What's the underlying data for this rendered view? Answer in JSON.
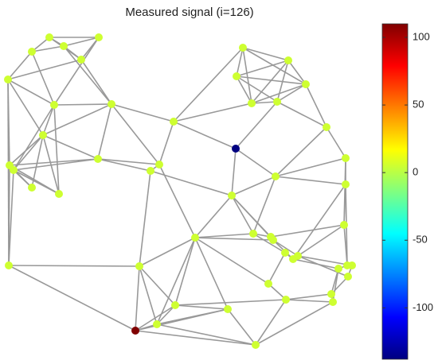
{
  "chart_data": {
    "type": "graph-signal",
    "title": "Measured signal (i=126)",
    "x": [
      62,
      40,
      80,
      124,
      102,
      10,
      68,
      140,
      54,
      12,
      17,
      40,
      74,
      123,
      189,
      200,
      218,
      296,
      305,
      362,
      297,
      384,
      316,
      348,
      410,
      434,
      346,
      434,
      291,
      245,
      318,
      340,
      343,
      432,
      358,
      368,
      374,
      436,
      442,
      425,
      437,
      11,
      175,
      337,
      416,
      418,
      359,
      220,
      286,
      197,
      170,
      321
    ],
    "y": [
      47,
      65,
      58,
      47,
      75,
      100,
      132,
      131,
      170,
      208,
      214,
      236,
      244,
      200,
      215,
      207,
      153,
      187,
      60,
      76,
      96,
      106,
      130,
      128,
      160,
      199,
      222,
      232,
      246,
      299,
      294,
      298,
      302,
      283,
      318,
      326,
      322,
      334,
      334,
      338,
      348,
      334,
      335,
      357,
      370,
      380,
      377,
      384,
      389,
      408,
      416,
      434
    ],
    "values": [
      5,
      5,
      5,
      5,
      5,
      5,
      5,
      5,
      5,
      5,
      5,
      5,
      5,
      5,
      5,
      5,
      5,
      -138,
      5,
      5,
      5,
      5,
      5,
      5,
      5,
      5,
      5,
      5,
      5,
      5,
      5,
      5,
      5,
      5,
      5,
      5,
      5,
      5,
      5,
      5,
      5,
      5,
      5,
      5,
      5,
      5,
      5,
      5,
      5,
      5,
      110,
      5
    ],
    "edges": [
      [
        0,
        1
      ],
      [
        0,
        2
      ],
      [
        0,
        3
      ],
      [
        0,
        4
      ],
      [
        1,
        2
      ],
      [
        1,
        5
      ],
      [
        1,
        6
      ],
      [
        2,
        3
      ],
      [
        2,
        4
      ],
      [
        3,
        4
      ],
      [
        3,
        6
      ],
      [
        2,
        7
      ],
      [
        4,
        7
      ],
      [
        4,
        5
      ],
      [
        5,
        6
      ],
      [
        5,
        8
      ],
      [
        5,
        9
      ],
      [
        6,
        7
      ],
      [
        6,
        8
      ],
      [
        6,
        10
      ],
      [
        6,
        12
      ],
      [
        7,
        8
      ],
      [
        7,
        13
      ],
      [
        7,
        15
      ],
      [
        7,
        16
      ],
      [
        8,
        9
      ],
      [
        8,
        10
      ],
      [
        8,
        11
      ],
      [
        8,
        12
      ],
      [
        8,
        13
      ],
      [
        9,
        10
      ],
      [
        9,
        11
      ],
      [
        9,
        12
      ],
      [
        9,
        13
      ],
      [
        10,
        13
      ],
      [
        10,
        11
      ],
      [
        10,
        12
      ],
      [
        10,
        41
      ],
      [
        9,
        41
      ],
      [
        13,
        14
      ],
      [
        13,
        15
      ],
      [
        14,
        15
      ],
      [
        14,
        42
      ],
      [
        14,
        28
      ],
      [
        15,
        16
      ],
      [
        15,
        29
      ],
      [
        16,
        18
      ],
      [
        16,
        17
      ],
      [
        16,
        22
      ],
      [
        17,
        28
      ],
      [
        17,
        26
      ],
      [
        17,
        23
      ],
      [
        18,
        19
      ],
      [
        18,
        20
      ],
      [
        18,
        21
      ],
      [
        18,
        22
      ],
      [
        19,
        20
      ],
      [
        19,
        21
      ],
      [
        19,
        22
      ],
      [
        19,
        23
      ],
      [
        20,
        21
      ],
      [
        20,
        22
      ],
      [
        20,
        23
      ],
      [
        21,
        22
      ],
      [
        21,
        23
      ],
      [
        21,
        24
      ],
      [
        22,
        23
      ],
      [
        23,
        24
      ],
      [
        24,
        25
      ],
      [
        24,
        26
      ],
      [
        25,
        26
      ],
      [
        25,
        27
      ],
      [
        26,
        28
      ],
      [
        26,
        30
      ],
      [
        26,
        27
      ],
      [
        27,
        33
      ],
      [
        27,
        35
      ],
      [
        28,
        29
      ],
      [
        28,
        30
      ],
      [
        28,
        31
      ],
      [
        28,
        32
      ],
      [
        29,
        30
      ],
      [
        29,
        32
      ],
      [
        29,
        42
      ],
      [
        29,
        43
      ],
      [
        29,
        47
      ],
      [
        29,
        48
      ],
      [
        29,
        49
      ],
      [
        30,
        31
      ],
      [
        30,
        34
      ],
      [
        31,
        32
      ],
      [
        31,
        33
      ],
      [
        32,
        35
      ],
      [
        32,
        36
      ],
      [
        33,
        37
      ],
      [
        33,
        36
      ],
      [
        34,
        35
      ],
      [
        34,
        43
      ],
      [
        35,
        39
      ],
      [
        36,
        38
      ],
      [
        36,
        40
      ],
      [
        37,
        38
      ],
      [
        37,
        39
      ],
      [
        38,
        40
      ],
      [
        39,
        44
      ],
      [
        39,
        45
      ],
      [
        40,
        44
      ],
      [
        44,
        45
      ],
      [
        44,
        46
      ],
      [
        43,
        46
      ],
      [
        45,
        46
      ],
      [
        45,
        51
      ],
      [
        46,
        51
      ],
      [
        46,
        47
      ],
      [
        47,
        48
      ],
      [
        47,
        49
      ],
      [
        48,
        49
      ],
      [
        48,
        51
      ],
      [
        49,
        50
      ],
      [
        50,
        51
      ],
      [
        42,
        50
      ],
      [
        42,
        47
      ],
      [
        42,
        49
      ],
      [
        41,
        42
      ],
      [
        41,
        50
      ],
      [
        50,
        47
      ],
      [
        50,
        48
      ],
      [
        49,
        51
      ],
      [
        25,
        33
      ],
      [
        27,
        37
      ],
      [
        5,
        41
      ]
    ],
    "colormap": "jet",
    "clim": [
      -138,
      110
    ],
    "cticks": [
      100,
      50,
      0,
      -50,
      -100
    ]
  }
}
